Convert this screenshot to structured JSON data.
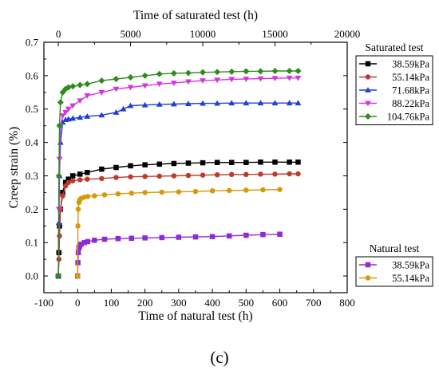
{
  "panel_label": "(c)",
  "chart_data": {
    "type": "line",
    "xlabel": "Time of natural test (h)",
    "x2label": "Time of saturated test (h)",
    "ylabel": "Creep strain (%)",
    "xlim": [
      -100,
      800
    ],
    "x2lim": [
      -1000,
      20000
    ],
    "ylim": [
      -0.05,
      0.7
    ],
    "x_ticks": [
      -100,
      0,
      100,
      200,
      300,
      400,
      500,
      600,
      700,
      800
    ],
    "x2_ticks": [
      0,
      5000,
      10000,
      15000,
      20000
    ],
    "y_ticks": [
      0.0,
      0.1,
      0.2,
      0.3,
      0.4,
      0.5,
      0.6,
      0.7
    ],
    "grid": false,
    "legend_groups": [
      {
        "title": "Saturated test",
        "placement": "top-right, outside plot",
        "axis": "top",
        "series": [
          {
            "name": "38.59kPa",
            "color": "#000000",
            "marker": "square",
            "x": [
              0,
              40,
              80,
              150,
              300,
              500,
              700,
              1000,
              1500,
              2000,
              3000,
              4000,
              5000,
              6000,
              7000,
              8000,
              9000,
              10000,
              11000,
              12000,
              13000,
              14000,
              15000,
              16000,
              16600
            ],
            "y": [
              0.0,
              0.07,
              0.15,
              0.2,
              0.25,
              0.28,
              0.29,
              0.3,
              0.305,
              0.31,
              0.32,
              0.325,
              0.33,
              0.333,
              0.335,
              0.337,
              0.338,
              0.339,
              0.34,
              0.34,
              0.34,
              0.341,
              0.341,
              0.341,
              0.341
            ]
          },
          {
            "name": "55.14kPa",
            "color": "#c0392b",
            "marker": "circle",
            "x": [
              0,
              40,
              80,
              150,
              300,
              500,
              700,
              1000,
              1500,
              2000,
              3000,
              4000,
              5000,
              6000,
              7000,
              8000,
              9000,
              10000,
              11000,
              12000,
              13000,
              14000,
              15000,
              16000,
              16600
            ],
            "y": [
              0.0,
              0.05,
              0.12,
              0.2,
              0.24,
              0.27,
              0.28,
              0.285,
              0.288,
              0.29,
              0.292,
              0.295,
              0.297,
              0.298,
              0.299,
              0.3,
              0.301,
              0.302,
              0.303,
              0.304,
              0.304,
              0.305,
              0.305,
              0.306,
              0.306
            ]
          },
          {
            "name": "71.68kPa",
            "color": "#1f3fd8",
            "marker": "triangle-up",
            "x": [
              0,
              40,
              80,
              150,
              300,
              500,
              700,
              1000,
              1500,
              2000,
              3000,
              4000,
              4500,
              5000,
              6000,
              7000,
              8000,
              9000,
              10000,
              11000,
              12000,
              13000,
              14000,
              15000,
              16000,
              16600
            ],
            "y": [
              0.0,
              0.16,
              0.3,
              0.4,
              0.46,
              0.468,
              0.47,
              0.472,
              0.475,
              0.478,
              0.482,
              0.49,
              0.5,
              0.51,
              0.512,
              0.514,
              0.515,
              0.516,
              0.517,
              0.517,
              0.518,
              0.518,
              0.518,
              0.518,
              0.518,
              0.518
            ]
          },
          {
            "name": "88.22kPa",
            "color": "#d633e0",
            "marker": "triangle-down",
            "x": [
              0,
              40,
              80,
              150,
              300,
              500,
              700,
              1000,
              1500,
              2000,
              3000,
              4000,
              5000,
              6000,
              7000,
              8000,
              9000,
              10000,
              11000,
              12000,
              13000,
              14000,
              15000,
              16000,
              16600
            ],
            "y": [
              0.0,
              0.2,
              0.35,
              0.45,
              0.48,
              0.49,
              0.5,
              0.51,
              0.525,
              0.54,
              0.55,
              0.56,
              0.565,
              0.57,
              0.575,
              0.578,
              0.582,
              0.585,
              0.587,
              0.589,
              0.59,
              0.591,
              0.592,
              0.593,
              0.593
            ]
          },
          {
            "name": "104.76kPa",
            "color": "#2e8b1e",
            "marker": "diamond",
            "x": [
              0,
              40,
              80,
              150,
              300,
              500,
              700,
              1000,
              1500,
              2000,
              3000,
              4000,
              5000,
              6000,
              7000,
              8000,
              9000,
              10000,
              11000,
              12000,
              13000,
              14000,
              15000,
              16000,
              16600
            ],
            "y": [
              0.0,
              0.3,
              0.45,
              0.52,
              0.55,
              0.56,
              0.565,
              0.568,
              0.572,
              0.575,
              0.585,
              0.59,
              0.595,
              0.6,
              0.605,
              0.607,
              0.608,
              0.61,
              0.611,
              0.612,
              0.613,
              0.613,
              0.614,
              0.614,
              0.614
            ]
          }
        ]
      },
      {
        "title": "Natural test",
        "placement": "bottom-right, outside plot",
        "axis": "bottom",
        "series": [
          {
            "name": "38.59kPa",
            "color": "#8e2bd6",
            "marker": "square",
            "x": [
              0,
              1,
              2,
              4,
              6,
              10,
              20,
              30,
              50,
              80,
              120,
              160,
              200,
              250,
              300,
              350,
              400,
              450,
              500,
              550,
              600
            ],
            "y": [
              0.0,
              0.04,
              0.07,
              0.085,
              0.09,
              0.095,
              0.1,
              0.103,
              0.107,
              0.11,
              0.112,
              0.113,
              0.114,
              0.115,
              0.116,
              0.117,
              0.118,
              0.12,
              0.122,
              0.124,
              0.125
            ]
          },
          {
            "name": "55.14kPa",
            "color": "#d49a0a",
            "marker": "circle",
            "x": [
              0,
              1,
              2,
              4,
              6,
              10,
              20,
              30,
              50,
              80,
              120,
              160,
              200,
              250,
              300,
              350,
              400,
              450,
              500,
              550,
              600
            ],
            "y": [
              0.0,
              0.15,
              0.2,
              0.22,
              0.228,
              0.232,
              0.236,
              0.238,
              0.24,
              0.243,
              0.246,
              0.248,
              0.25,
              0.251,
              0.252,
              0.253,
              0.255,
              0.256,
              0.257,
              0.258,
              0.259
            ]
          }
        ]
      }
    ]
  }
}
